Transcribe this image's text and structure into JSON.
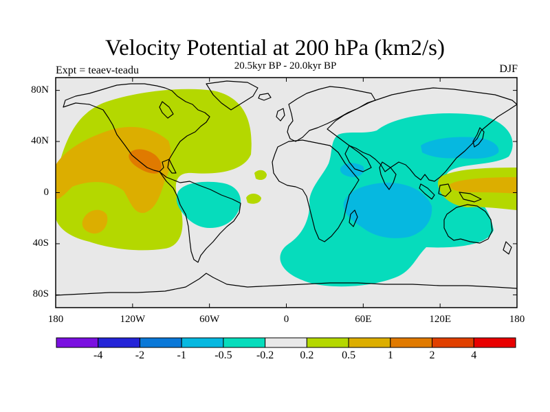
{
  "title": "Velocity Potential at 200 hPa (km2/s)",
  "subtitle": "20.5kyr BP - 20.0kyr BP",
  "left_label": "Expt = teaev-teadu",
  "right_label": "DJF",
  "map": {
    "projection": "equirectangular",
    "lon_range": [
      -180,
      180
    ],
    "lat_range": [
      -90,
      90
    ],
    "lat_ticks": [
      {
        "lat": 80,
        "label": "80N"
      },
      {
        "lat": 40,
        "label": "40N"
      },
      {
        "lat": 0,
        "label": "0"
      },
      {
        "lat": -40,
        "label": "40S"
      },
      {
        "lat": -80,
        "label": "80S"
      }
    ],
    "lon_ticks": [
      {
        "lon": -180,
        "label": "180"
      },
      {
        "lon": -120,
        "label": "120W"
      },
      {
        "lon": -60,
        "label": "60W"
      },
      {
        "lon": 0,
        "label": "0"
      },
      {
        "lon": 60,
        "label": "60E"
      },
      {
        "lon": 120,
        "label": "120E"
      },
      {
        "lon": 180,
        "label": "180"
      }
    ]
  },
  "colorbar": {
    "colors": [
      "#7a10e0",
      "#2424d8",
      "#0a78d8",
      "#06b8e0",
      "#06dcbc",
      "#e8e8e8",
      "#b4d800",
      "#dcae00",
      "#e07a00",
      "#e04000",
      "#e80000"
    ],
    "labels": [
      "-4",
      "-2",
      "-1",
      "-0.5",
      "-0.2",
      "0.2",
      "0.5",
      "1",
      "2",
      "4"
    ]
  },
  "chart_data": {
    "type": "heatmap",
    "field": "200 hPa velocity potential difference",
    "levels": [
      -4,
      -2,
      -1,
      -0.5,
      -0.2,
      0.2,
      0.5,
      1,
      2,
      4
    ],
    "regions": [
      {
        "value_range": [
          0.2,
          0.5
        ],
        "lon": -180,
        "lat_span": [
          -40,
          70
        ],
        "lon_span": [
          -180,
          -30
        ]
      },
      {
        "value_range": [
          0.5,
          1
        ],
        "lon_span": [
          -180,
          -100
        ],
        "lat_span": [
          -20,
          45
        ]
      },
      {
        "value_range": [
          1,
          2
        ],
        "lon_span": [
          -122,
          -100
        ],
        "lat_span": [
          15,
          30
        ]
      },
      {
        "value_range": [
          -0.5,
          -0.2
        ],
        "lon_span": [
          15,
          180
        ],
        "lat_span": [
          -75,
          55
        ]
      },
      {
        "value_range": [
          -1,
          -0.5
        ],
        "lon_span": [
          50,
          115
        ],
        "lat_span": [
          -40,
          10
        ]
      },
      {
        "value_range": [
          0.2,
          0.5
        ],
        "lon_span": [
          130,
          180
        ],
        "lat_span": [
          -15,
          15
        ]
      },
      {
        "value_range": [
          0.5,
          1
        ],
        "lon_span": [
          135,
          180
        ],
        "lat_span": [
          0,
          12
        ]
      }
    ]
  }
}
